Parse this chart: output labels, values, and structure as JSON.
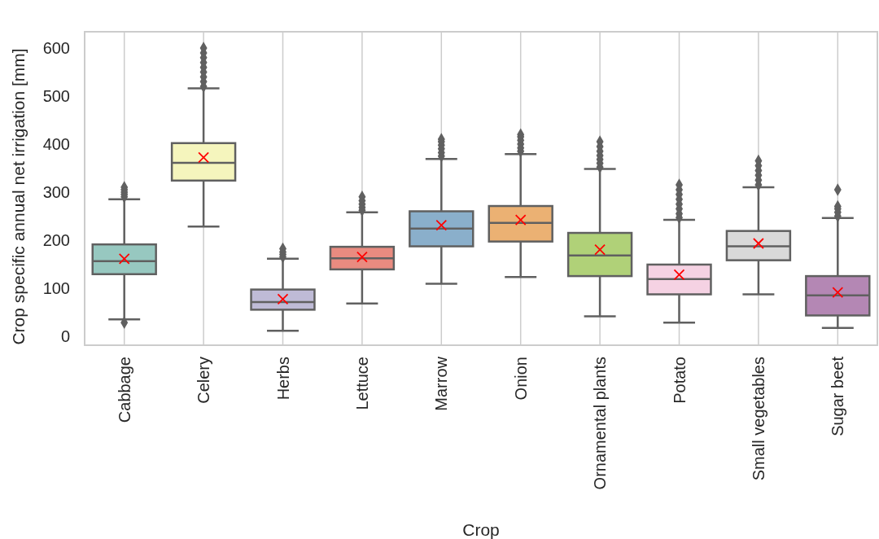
{
  "chart_data": {
    "type": "box",
    "xlabel": "Crop",
    "ylabel": "Crop specific annual net irrigation [mm]",
    "categories": [
      "Cabbage",
      "Celery",
      "Herbs",
      "Lettuce",
      "Marrow",
      "Onion",
      "Ornamental plants",
      "Potato",
      "Small vegetables",
      "Sugar beet"
    ],
    "colors": [
      "#97c8c0",
      "#f5f5bd",
      "#bfbbd6",
      "#e98b80",
      "#8aafcb",
      "#ebb173",
      "#b0d178",
      "#f5d2e3",
      "#d9d9d9",
      "#b487b4"
    ],
    "boxes": [
      {
        "low": 35,
        "q1": 129,
        "median": 156,
        "q3": 191,
        "high": 285,
        "mean": 161,
        "outliers": [
          28,
          290,
          295,
          300,
          305,
          310
        ]
      },
      {
        "low": 228,
        "q1": 324,
        "median": 361,
        "q3": 402,
        "high": 516,
        "mean": 372,
        "outliers": [
          520,
          530,
          540,
          550,
          560,
          570,
          580,
          590,
          600
        ]
      },
      {
        "low": 11,
        "q1": 55,
        "median": 71,
        "q3": 97,
        "high": 161,
        "mean": 77,
        "outliers": [
          165,
          170,
          175,
          182
        ]
      },
      {
        "low": 68,
        "q1": 139,
        "median": 162,
        "q3": 186,
        "high": 258,
        "mean": 165,
        "outliers": [
          262,
          268,
          275,
          282,
          290
        ]
      },
      {
        "low": 109,
        "q1": 187,
        "median": 224,
        "q3": 260,
        "high": 369,
        "mean": 231,
        "outliers": [
          375,
          382,
          390,
          398,
          405,
          410
        ]
      },
      {
        "low": 123,
        "q1": 197,
        "median": 236,
        "q3": 271,
        "high": 379,
        "mean": 242,
        "outliers": [
          385,
          392,
          400,
          408,
          415,
          420
        ]
      },
      {
        "low": 41,
        "q1": 125,
        "median": 168,
        "q3": 215,
        "high": 348,
        "mean": 180,
        "outliers": [
          352,
          360,
          368,
          376,
          385,
          395,
          405
        ]
      },
      {
        "low": 28,
        "q1": 87,
        "median": 119,
        "q3": 149,
        "high": 242,
        "mean": 128,
        "outliers": [
          247,
          255,
          265,
          275,
          285,
          295,
          305,
          315
        ]
      },
      {
        "low": 87,
        "q1": 158,
        "median": 187,
        "q3": 219,
        "high": 310,
        "mean": 193,
        "outliers": [
          315,
          325,
          335,
          345,
          355,
          365
        ]
      },
      {
        "low": 17,
        "q1": 43,
        "median": 85,
        "q3": 125,
        "high": 246,
        "mean": 91,
        "outliers": [
          250,
          258,
          265,
          270,
          305
        ]
      }
    ],
    "ylim": [
      -19,
      634
    ],
    "yticks": [
      0,
      100,
      200,
      300,
      400,
      500,
      600
    ],
    "grid": "x",
    "marker": "cross"
  }
}
